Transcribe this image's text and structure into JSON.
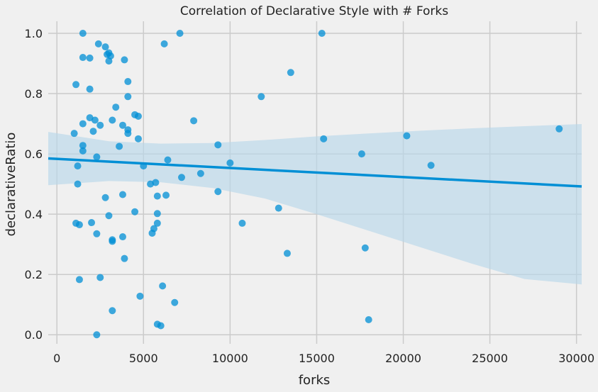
{
  "chart_data": {
    "type": "scatter",
    "title": "Correlation of Declarative Style with # Forks",
    "xlabel": "forks",
    "ylabel": "declarativeRatio",
    "xlim": [
      -500,
      30300
    ],
    "ylim": [
      -0.03,
      1.04
    ],
    "xticks": [
      0,
      5000,
      10000,
      15000,
      20000,
      25000,
      30000
    ],
    "yticks": [
      0.0,
      0.2,
      0.4,
      0.6,
      0.8,
      1.0
    ],
    "xtick_labels": [
      "0",
      "5000",
      "10000",
      "15000",
      "20000",
      "25000",
      "30000"
    ],
    "ytick_labels": [
      "0.0",
      "0.2",
      "0.4",
      "0.6",
      "0.8",
      "1.0"
    ],
    "grid": true,
    "colors": {
      "points": "#008fd5",
      "band": "#b8d7e9",
      "line": "#008fd5",
      "background": "#f0f0f0",
      "grid": "#cbcbcb"
    },
    "regression": {
      "x": [
        -500,
        30300
      ],
      "y": [
        0.585,
        0.492
      ],
      "ci_upper": [
        [
          -500,
          0.673
        ],
        [
          3000,
          0.642
        ],
        [
          6000,
          0.634
        ],
        [
          9000,
          0.636
        ],
        [
          12000,
          0.646
        ],
        [
          15000,
          0.658
        ],
        [
          18000,
          0.668
        ],
        [
          21000,
          0.677
        ],
        [
          24000,
          0.685
        ],
        [
          27000,
          0.692
        ],
        [
          30300,
          0.699
        ]
      ],
      "ci_lower": [
        [
          -500,
          0.496
        ],
        [
          3000,
          0.51
        ],
        [
          6000,
          0.506
        ],
        [
          9000,
          0.487
        ],
        [
          12000,
          0.452
        ],
        [
          15000,
          0.4
        ],
        [
          18000,
          0.345
        ],
        [
          21000,
          0.29
        ],
        [
          24000,
          0.235
        ],
        [
          27000,
          0.185
        ],
        [
          30300,
          0.167
        ]
      ]
    },
    "points": [
      [
        1500,
        1.0
      ],
      [
        7100,
        1.0
      ],
      [
        15300,
        1.0
      ],
      [
        6200,
        0.965
      ],
      [
        2400,
        0.965
      ],
      [
        2800,
        0.955
      ],
      [
        3000,
        0.935
      ],
      [
        2900,
        0.93
      ],
      [
        3100,
        0.925
      ],
      [
        1500,
        0.92
      ],
      [
        1900,
        0.918
      ],
      [
        3900,
        0.912
      ],
      [
        3000,
        0.908
      ],
      [
        13500,
        0.87
      ],
      [
        4100,
        0.84
      ],
      [
        1100,
        0.83
      ],
      [
        1900,
        0.815
      ],
      [
        4100,
        0.79
      ],
      [
        11800,
        0.79
      ],
      [
        3400,
        0.755
      ],
      [
        4500,
        0.73
      ],
      [
        4700,
        0.725
      ],
      [
        1900,
        0.72
      ],
      [
        2200,
        0.712
      ],
      [
        3200,
        0.712
      ],
      [
        7900,
        0.71
      ],
      [
        1500,
        0.7
      ],
      [
        2500,
        0.695
      ],
      [
        3800,
        0.695
      ],
      [
        4100,
        0.68
      ],
      [
        29000,
        0.683
      ],
      [
        2100,
        0.675
      ],
      [
        1000,
        0.668
      ],
      [
        4100,
        0.668
      ],
      [
        20200,
        0.66
      ],
      [
        4700,
        0.65
      ],
      [
        15400,
        0.65
      ],
      [
        9300,
        0.63
      ],
      [
        1500,
        0.628
      ],
      [
        3600,
        0.625
      ],
      [
        1500,
        0.61
      ],
      [
        17600,
        0.6
      ],
      [
        2300,
        0.59
      ],
      [
        6400,
        0.58
      ],
      [
        10000,
        0.57
      ],
      [
        21600,
        0.562
      ],
      [
        1200,
        0.56
      ],
      [
        5000,
        0.56
      ],
      [
        8300,
        0.535
      ],
      [
        7200,
        0.522
      ],
      [
        5700,
        0.505
      ],
      [
        1200,
        0.5
      ],
      [
        5400,
        0.5
      ],
      [
        3800,
        0.465
      ],
      [
        6300,
        0.463
      ],
      [
        9300,
        0.475
      ],
      [
        5800,
        0.46
      ],
      [
        2800,
        0.455
      ],
      [
        12800,
        0.42
      ],
      [
        4500,
        0.408
      ],
      [
        5800,
        0.402
      ],
      [
        3000,
        0.395
      ],
      [
        1100,
        0.37
      ],
      [
        1300,
        0.365
      ],
      [
        2000,
        0.372
      ],
      [
        5800,
        0.37
      ],
      [
        10700,
        0.37
      ],
      [
        5600,
        0.352
      ],
      [
        5500,
        0.337
      ],
      [
        2300,
        0.335
      ],
      [
        3800,
        0.325
      ],
      [
        3200,
        0.315
      ],
      [
        3200,
        0.31
      ],
      [
        17800,
        0.288
      ],
      [
        13300,
        0.27
      ],
      [
        3900,
        0.253
      ],
      [
        2500,
        0.19
      ],
      [
        1300,
        0.183
      ],
      [
        6100,
        0.162
      ],
      [
        4800,
        0.128
      ],
      [
        6800,
        0.107
      ],
      [
        3200,
        0.08
      ],
      [
        18000,
        0.05
      ],
      [
        5800,
        0.035
      ],
      [
        6000,
        0.03
      ],
      [
        2300,
        0.0
      ]
    ]
  }
}
